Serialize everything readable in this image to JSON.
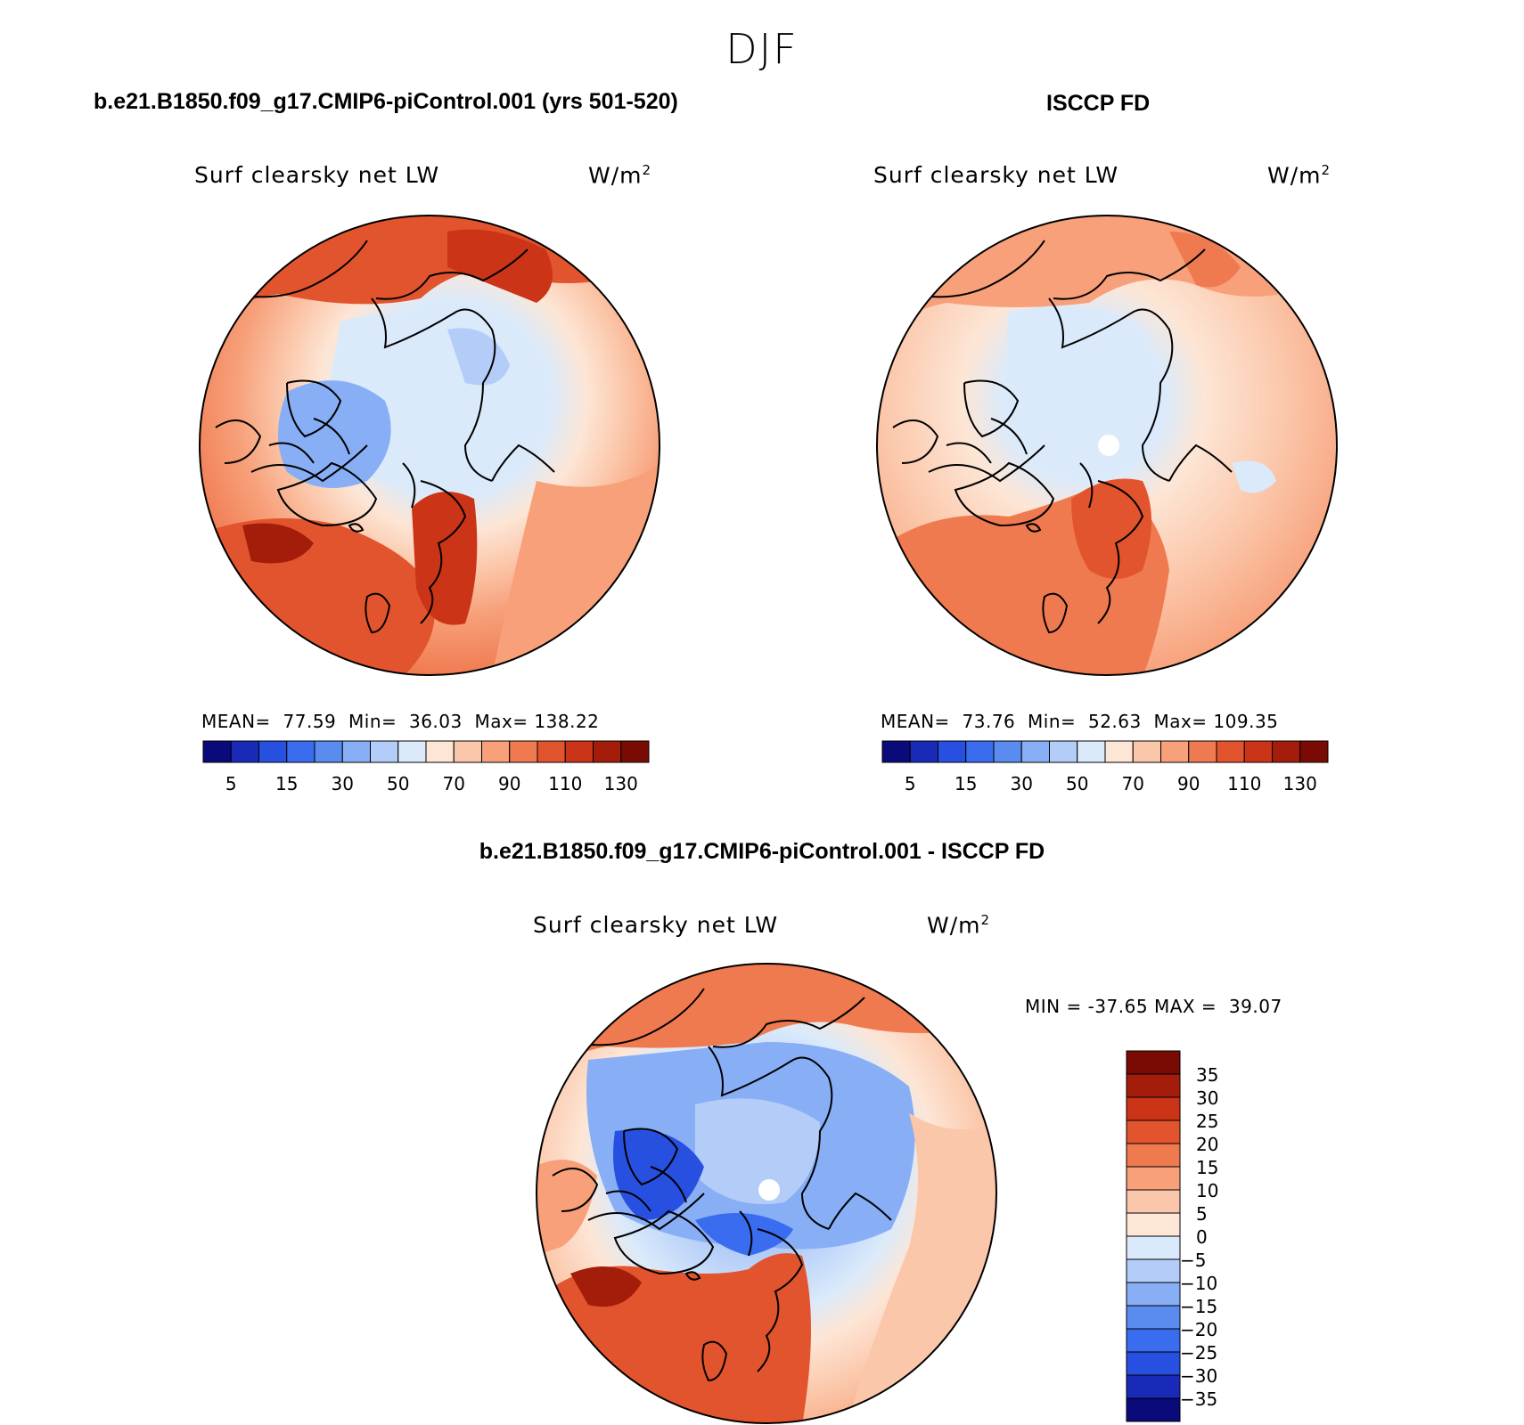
{
  "title": "DJF",
  "panels": {
    "model": {
      "title": "b.e21.B1850.f09_g17.CMIP6-piControl.001 (yrs 501-520)",
      "variable": "Surf clearsky net LW",
      "units": "W/m",
      "units_sup": "2",
      "stats": {
        "mean_label": "MEAN=",
        "mean": "77.59",
        "min_label": "Min=",
        "min": "36.03",
        "max_label": "Max=",
        "max": "138.22"
      }
    },
    "obs": {
      "title": "ISCCP FD",
      "variable": "Surf clearsky net LW",
      "units": "W/m",
      "units_sup": "2",
      "stats": {
        "mean_label": "MEAN=",
        "mean": "73.76",
        "min_label": "Min=",
        "min": "52.63",
        "max_label": "Max=",
        "max": "109.35"
      }
    },
    "diff": {
      "title": "b.e21.B1850.f09_g17.CMIP6-piControl.001 - ISCCP FD",
      "variable": "Surf clearsky net LW",
      "units": "W/m",
      "units_sup": "2",
      "stats": {
        "min_label": "MIN =",
        "min": "-37.65",
        "max_label": "MAX =",
        "max": "39.07"
      }
    }
  },
  "chart_data": [
    {
      "type": "heatmap",
      "projection": "north polar stereographic",
      "title": "b.e21.B1850.f09_g17.CMIP6-piControl.001 (yrs 501-520)",
      "variable": "Surf clearsky net LW",
      "units": "W/m2",
      "mean": 77.59,
      "min": 36.03,
      "max": 138.22,
      "colorbar_levels": [
        5,
        10,
        15,
        20,
        30,
        40,
        50,
        60,
        70,
        80,
        90,
        100,
        110,
        120,
        130
      ],
      "colorbar_tick_labels": [
        "5",
        "15",
        "30",
        "50",
        "70",
        "90",
        "110",
        "130"
      ],
      "colors": [
        "#0a0a7a",
        "#1a2ab8",
        "#2850e0",
        "#3a6cf0",
        "#5a8cf0",
        "#88aef5",
        "#b4cdf8",
        "#daeafb",
        "#fde6d6",
        "#fbc7aa",
        "#f7a07a",
        "#f07a50",
        "#e2542d",
        "#cc3418",
        "#a41c0a",
        "#7a0a04"
      ]
    },
    {
      "type": "heatmap",
      "projection": "north polar stereographic",
      "title": "ISCCP FD",
      "variable": "Surf clearsky net LW",
      "units": "W/m2",
      "mean": 73.76,
      "min": 52.63,
      "max": 109.35,
      "colorbar_levels": [
        5,
        10,
        15,
        20,
        30,
        40,
        50,
        60,
        70,
        80,
        90,
        100,
        110,
        120,
        130
      ],
      "colorbar_tick_labels": [
        "5",
        "15",
        "30",
        "50",
        "70",
        "90",
        "110",
        "130"
      ]
    },
    {
      "type": "heatmap",
      "projection": "north polar stereographic",
      "title": "b.e21.B1850.f09_g17.CMIP6-piControl.001 - ISCCP FD",
      "variable": "Surf clearsky net LW",
      "units": "W/m2",
      "min": -37.65,
      "max": 39.07,
      "colorbar_levels": [
        35,
        30,
        25,
        20,
        15,
        10,
        5,
        0,
        -5,
        -10,
        -15,
        -20,
        -25,
        -30,
        -35
      ],
      "colorbar_tick_labels": [
        "35",
        "30",
        "25",
        "20",
        "15",
        "10",
        "5",
        "0",
        "−5",
        "−10",
        "−15",
        "−20",
        "−25",
        "−30",
        "−35"
      ],
      "colors": [
        "#7a0a04",
        "#a41c0a",
        "#cc3418",
        "#e2542d",
        "#f07a50",
        "#f7a07a",
        "#fbc7aa",
        "#fde6d6",
        "#daeafb",
        "#b4cdf8",
        "#88aef5",
        "#5a8cf0",
        "#3a6cf0",
        "#2850e0",
        "#1a2ab8",
        "#0a0a7a"
      ]
    }
  ]
}
